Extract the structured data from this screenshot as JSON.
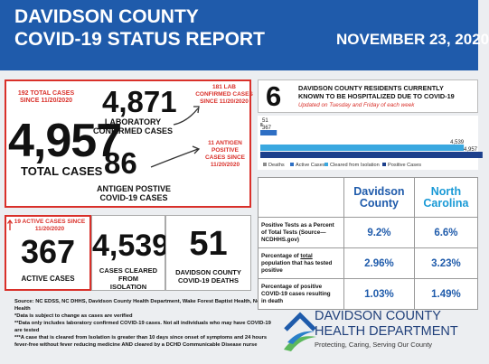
{
  "header": {
    "title_lines": [
      "DAVIDSON COUNTY",
      "COVID-19 STATUS REPORT"
    ],
    "date": "NOVEMBER 23, 2020"
  },
  "cases": {
    "total_since": [
      "192 TOTAL CASES",
      "SINCE 11/20/2020"
    ],
    "total": "4,957",
    "total_label": "TOTAL CASES",
    "lab": "4,871",
    "lab_label": [
      "LABORATORY",
      "CONFIRMED CASES"
    ],
    "lab_since": [
      "181 LAB",
      "CONFIRMED CASES",
      "SINCE 11/20/2020"
    ],
    "antigen": "86",
    "antigen_label": [
      "ANTIGEN POSTIVE",
      "COVID-19 CASES"
    ],
    "antigen_since": [
      "11 ANTIGEN",
      "POSITIVE",
      "CASES SINCE",
      "11/20/2020"
    ]
  },
  "status": {
    "active_since": [
      "19 ACTIVE CASES SINCE",
      "11/20/2020"
    ],
    "active": "367",
    "active_label": "ACTIVE CASES",
    "cleared": "4,539",
    "cleared_label": [
      "CASES CLEARED FROM",
      "ISOLATION"
    ],
    "deaths": "51",
    "deaths_label": [
      "DAVIDSON COUNTY",
      "COVID-19 DEATHS"
    ]
  },
  "hospital": {
    "number": "6",
    "text": [
      "DAVIDSON COUNTY RESIDENTS CURRENTLY",
      "KNOWN TO BE HOSPITALIZED DUE TO COVID-19"
    ],
    "note": "Updated on Tuesday and Friday of each week"
  },
  "chart_data": {
    "type": "bar",
    "orientation": "horizontal",
    "xlim": [
      0,
      5000
    ],
    "series": [
      {
        "name": "Deaths",
        "color": "#8c8c8c",
        "values": [
          51
        ],
        "value_labels": [
          "51"
        ]
      },
      {
        "name": "Active Cases",
        "color": "#2e6fc4",
        "values": [
          367
        ],
        "value_labels": [
          "367"
        ]
      },
      {
        "name": "Cleared from Isolation",
        "color": "#3aa8e0",
        "values": [
          4539
        ],
        "value_labels": [
          "4,539"
        ]
      },
      {
        "name": "Positive Cases",
        "color": "#1c3f8c",
        "values": [
          4957
        ],
        "value_labels": [
          "4,957"
        ]
      }
    ]
  },
  "table": {
    "headers": [
      [
        "Davidson",
        "County"
      ],
      [
        "North",
        "Carolina"
      ]
    ],
    "rows": [
      {
        "label": [
          "Positive Tests as a Percent",
          "of Total Tests (Source—",
          "NCDHHS.gov)"
        ],
        "values": [
          "9.2%",
          "6.6%"
        ]
      },
      {
        "label": {
          "before": "Percentage of ",
          "underlined": "total",
          "after": " population that has tested positive"
        },
        "values": [
          "2.96%",
          "3.23%"
        ]
      },
      {
        "label": [
          "Percentage of positive",
          "COVID-19 cases resulting",
          "in death"
        ],
        "values": [
          "1.03%",
          "1.49%"
        ]
      }
    ]
  },
  "sources": [
    "Source:  NC EDSS, NC DHHS, Davidson County Health Department, Wake Forest Baptist Health, Novant Health",
    "*Data is subject to change as cases are verified",
    "**Data only includes laboratory confirmed COVID-19 cases.  Not all individuals who may have COVID-19 are tested",
    "***A case that is cleared from Isolation is greater than 10 days since onset of symptoms and 24 hours fever-free without fever reducing medicine AND cleared by a DCHD Communicable Disease nurse"
  ],
  "logo": {
    "line1": "DAVIDSON COUNTY",
    "line2": "HEALTH DEPARTMENT",
    "tagline": "Protecting, Caring, Serving Our County"
  }
}
